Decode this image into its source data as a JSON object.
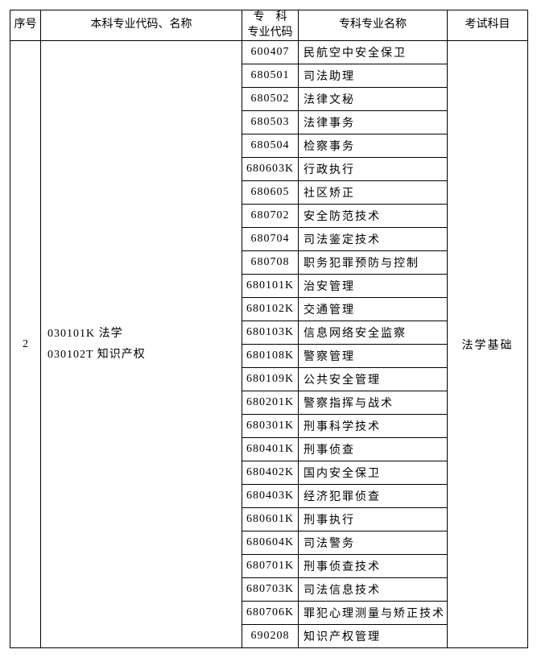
{
  "headers": {
    "index": "序号",
    "major": "本科专业代码、名称",
    "code_line1": "专　科",
    "code_line2": "专业代码",
    "name": "专科专业名称",
    "exam": "考试科目"
  },
  "row": {
    "index": "2",
    "major_line1": "030101K 法学",
    "major_line2": "030102T 知识产权",
    "exam": "法学基础"
  },
  "items": [
    {
      "code": "600407",
      "name": "民航空中安全保卫"
    },
    {
      "code": "680501",
      "name": "司法助理"
    },
    {
      "code": "680502",
      "name": "法律文秘"
    },
    {
      "code": "680503",
      "name": "法律事务"
    },
    {
      "code": "680504",
      "name": "检察事务"
    },
    {
      "code": "680603K",
      "name": "行政执行"
    },
    {
      "code": "680605",
      "name": "社区矫正"
    },
    {
      "code": "680702",
      "name": "安全防范技术"
    },
    {
      "code": "680704",
      "name": "司法鉴定技术"
    },
    {
      "code": "680708",
      "name": "职务犯罪预防与控制"
    },
    {
      "code": "680101K",
      "name": "治安管理"
    },
    {
      "code": "680102K",
      "name": "交通管理"
    },
    {
      "code": "680103K",
      "name": "信息网络安全监察"
    },
    {
      "code": "680108K",
      "name": "警察管理"
    },
    {
      "code": "680109K",
      "name": "公共安全管理"
    },
    {
      "code": "680201K",
      "name": "警察指挥与战术"
    },
    {
      "code": "680301K",
      "name": "刑事科学技术"
    },
    {
      "code": "680401K",
      "name": "刑事侦查"
    },
    {
      "code": "680402K",
      "name": "国内安全保卫"
    },
    {
      "code": "680403K",
      "name": "经济犯罪侦查"
    },
    {
      "code": "680601K",
      "name": "刑事执行"
    },
    {
      "code": "680604K",
      "name": "司法警务"
    },
    {
      "code": "680701K",
      "name": "刑事侦查技术"
    },
    {
      "code": "680703K",
      "name": "司法信息技术"
    },
    {
      "code": "680706K",
      "name": "罪犯心理测量与矫正技术"
    },
    {
      "code": "690208",
      "name": "知识产权管理"
    }
  ]
}
